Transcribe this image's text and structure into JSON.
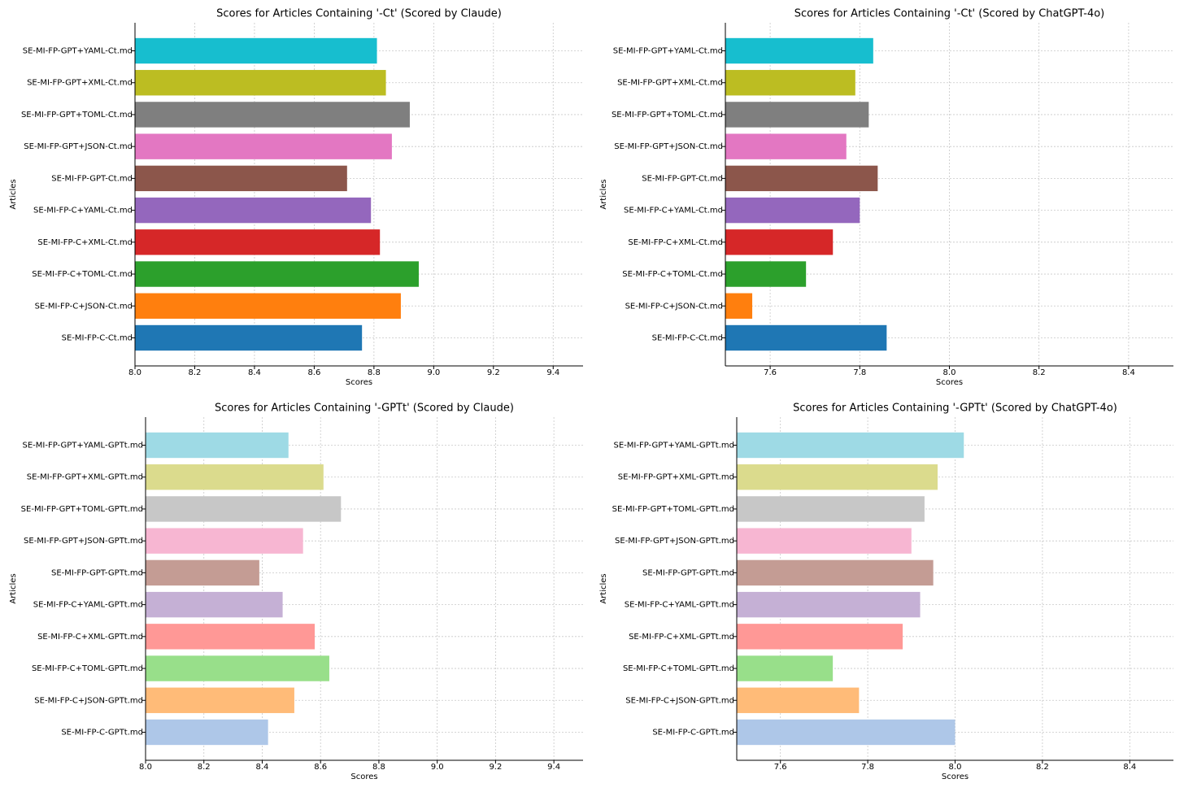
{
  "chart_data": [
    {
      "type": "barh",
      "title": "Scores for Articles Containing '-Ct' (Scored by Claude)",
      "xlabel": "Scores",
      "ylabel": "Articles",
      "categories": [
        "SE-MI-FP-C-Ct.md",
        "SE-MI-FP-C+JSON-Ct.md",
        "SE-MI-FP-C+TOML-Ct.md",
        "SE-MI-FP-C+XML-Ct.md",
        "SE-MI-FP-C+YAML-Ct.md",
        "SE-MI-FP-GPT-Ct.md",
        "SE-MI-FP-GPT+JSON-Ct.md",
        "SE-MI-FP-GPT+TOML-Ct.md",
        "SE-MI-FP-GPT+XML-Ct.md",
        "SE-MI-FP-GPT+YAML-Ct.md"
      ],
      "values": [
        8.76,
        8.89,
        8.95,
        8.82,
        8.79,
        8.71,
        8.86,
        8.92,
        8.84,
        8.81
      ],
      "colors": [
        "#1f77b4",
        "#ff7f0e",
        "#2ca02c",
        "#d62728",
        "#9467bd",
        "#8c564b",
        "#e377c2",
        "#7f7f7f",
        "#bcbd22",
        "#17becf"
      ],
      "xlim": [
        8.0,
        9.5
      ],
      "xticks": [
        {
          "value": 8,
          "label": "8.0"
        },
        8.2,
        8.4,
        8.6,
        8.8,
        {
          "value": 9,
          "label": "9.0"
        },
        9.2,
        9.4
      ],
      "grid": true
    },
    {
      "type": "barh",
      "title": "Scores for Articles Containing '-Ct' (Scored by ChatGPT-4o)",
      "xlabel": "Scores",
      "ylabel": "Articles",
      "categories": [
        "SE-MI-FP-C-Ct.md",
        "SE-MI-FP-C+JSON-Ct.md",
        "SE-MI-FP-C+TOML-Ct.md",
        "SE-MI-FP-C+XML-Ct.md",
        "SE-MI-FP-C+YAML-Ct.md",
        "SE-MI-FP-GPT-Ct.md",
        "SE-MI-FP-GPT+JSON-Ct.md",
        "SE-MI-FP-GPT+TOML-Ct.md",
        "SE-MI-FP-GPT+XML-Ct.md",
        "SE-MI-FP-GPT+YAML-Ct.md"
      ],
      "values": [
        7.86,
        7.56,
        7.68,
        7.74,
        7.8,
        7.84,
        7.77,
        7.82,
        7.79,
        7.83
      ],
      "colors": [
        "#1f77b4",
        "#ff7f0e",
        "#2ca02c",
        "#d62728",
        "#9467bd",
        "#8c564b",
        "#e377c2",
        "#7f7f7f",
        "#bcbd22",
        "#17becf"
      ],
      "xlim": [
        7.5,
        8.5
      ],
      "xticks": [
        7.6,
        7.8,
        {
          "value": 8,
          "label": "8.0"
        },
        8.2,
        8.4
      ],
      "grid": true
    },
    {
      "type": "barh",
      "title": "Scores for Articles Containing '-GPTt' (Scored by Claude)",
      "xlabel": "Scores",
      "ylabel": "Articles",
      "categories": [
        "SE-MI-FP-C-GPTt.md",
        "SE-MI-FP-C+JSON-GPTt.md",
        "SE-MI-FP-C+TOML-GPTt.md",
        "SE-MI-FP-C+XML-GPTt.md",
        "SE-MI-FP-C+YAML-GPTt.md",
        "SE-MI-FP-GPT-GPTt.md",
        "SE-MI-FP-GPT+JSON-GPTt.md",
        "SE-MI-FP-GPT+TOML-GPTt.md",
        "SE-MI-FP-GPT+XML-GPTt.md",
        "SE-MI-FP-GPT+YAML-GPTt.md"
      ],
      "values": [
        8.42,
        8.51,
        8.63,
        8.58,
        8.47,
        8.39,
        8.54,
        8.67,
        8.61,
        8.49
      ],
      "colors": [
        "#aec7e8",
        "#ffbb78",
        "#98df8a",
        "#ff9896",
        "#c5b0d5",
        "#c49c94",
        "#f7b6d2",
        "#c7c7c7",
        "#dbdb8d",
        "#9edae5"
      ],
      "xlim": [
        8.0,
        9.5
      ],
      "xticks": [
        {
          "value": 8,
          "label": "8.0"
        },
        8.2,
        8.4,
        8.6,
        8.8,
        {
          "value": 9,
          "label": "9.0"
        },
        9.2,
        9.4
      ],
      "grid": true
    },
    {
      "type": "barh",
      "title": "Scores for Articles Containing '-GPTt' (Scored by ChatGPT-4o)",
      "xlabel": "Scores",
      "ylabel": "Articles",
      "categories": [
        "SE-MI-FP-C-GPTt.md",
        "SE-MI-FP-C+JSON-GPTt.md",
        "SE-MI-FP-C+TOML-GPTt.md",
        "SE-MI-FP-C+XML-GPTt.md",
        "SE-MI-FP-C+YAML-GPTt.md",
        "SE-MI-FP-GPT-GPTt.md",
        "SE-MI-FP-GPT+JSON-GPTt.md",
        "SE-MI-FP-GPT+TOML-GPTt.md",
        "SE-MI-FP-GPT+XML-GPTt.md",
        "SE-MI-FP-GPT+YAML-GPTt.md"
      ],
      "values": [
        8.0,
        7.78,
        7.72,
        7.88,
        7.92,
        7.95,
        7.9,
        7.93,
        7.96,
        8.02
      ],
      "colors": [
        "#aec7e8",
        "#ffbb78",
        "#98df8a",
        "#ff9896",
        "#c5b0d5",
        "#c49c94",
        "#f7b6d2",
        "#c7c7c7",
        "#dbdb8d",
        "#9edae5"
      ],
      "xlim": [
        7.5,
        8.5
      ],
      "xticks": [
        7.6,
        7.8,
        {
          "value": 8,
          "label": "8.0"
        },
        8.2,
        8.4
      ],
      "grid": true
    }
  ]
}
